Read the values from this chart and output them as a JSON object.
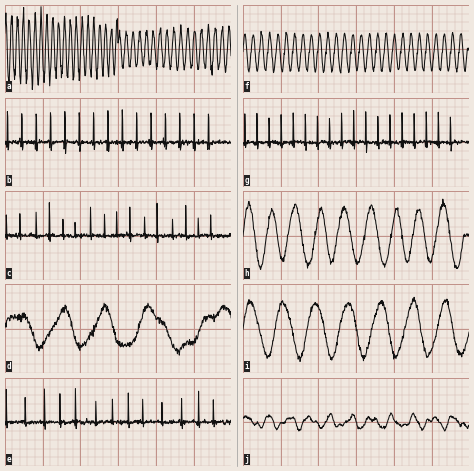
{
  "bg_color": "#f0e8e0",
  "grid_minor_color": "#d4b8b0",
  "grid_major_color": "#c09088",
  "line_color": "#111111",
  "label_bg": "#222222",
  "label_fg": "#ffffff",
  "figsize": [
    4.74,
    4.71
  ],
  "dpi": 100,
  "n_rows": 5,
  "n_cols": 2,
  "left_panels": [
    "a",
    "b",
    "c",
    "d",
    "e"
  ],
  "right_panels": [
    "f",
    "g",
    "h",
    "i",
    "j"
  ]
}
